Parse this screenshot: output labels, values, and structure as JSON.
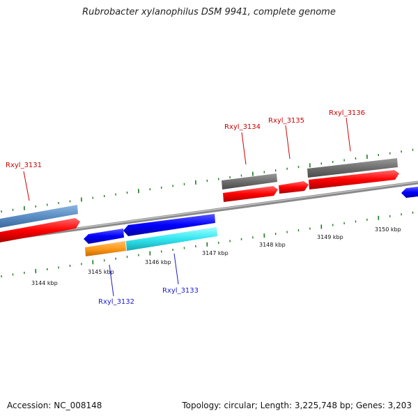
{
  "title": "Rubrobacter xylanophilus DSM 9941, complete genome",
  "accession": "Accession: NC_008148",
  "summary": "Topology: circular; Length: 3,225,748 bp; Genes: 3,203",
  "colors": {
    "forward_gene": "#ff0000",
    "reverse_gene": "#0000ff",
    "forward_label": "#cc0000",
    "reverse_label": "#1a1acc",
    "tick": "#1a7a1a",
    "backbone": "#999999",
    "grey_feature": "#6e6e6e",
    "steel_feature": "#5b8ec4",
    "orange_feature": "#ff9a1a",
    "cyan_feature": "#33e6f0"
  },
  "axis_labels": [
    "3144 kbp",
    "3145 kbp",
    "3146 kbp",
    "3147 kbp",
    "3148 kbp",
    "3149 kbp",
    "3150 kbp"
  ],
  "genes": [
    {
      "name": "Rxyl_3131",
      "strand": "forward"
    },
    {
      "name": "Rxyl_3132",
      "strand": "reverse"
    },
    {
      "name": "Rxyl_3133",
      "strand": "reverse"
    },
    {
      "name": "Rxyl_3134",
      "strand": "forward"
    },
    {
      "name": "Rxyl_3135",
      "strand": "forward"
    },
    {
      "name": "Rxyl_3136",
      "strand": "forward"
    }
  ]
}
